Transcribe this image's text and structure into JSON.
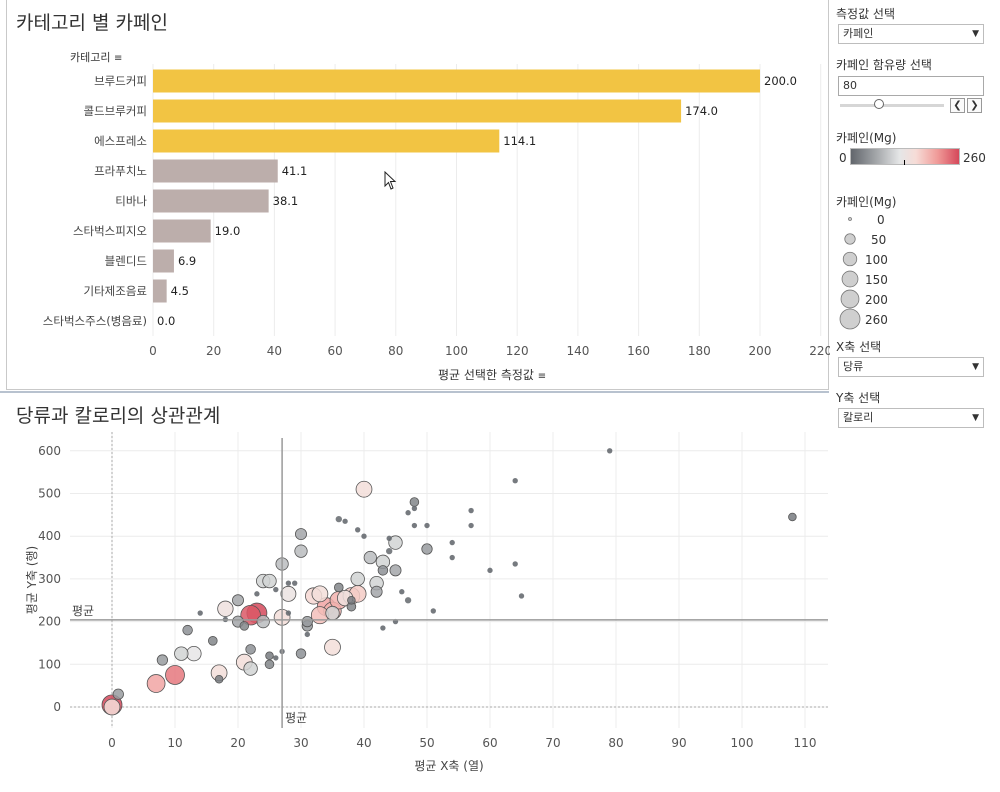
{
  "colors": {
    "bar_highlight": "#f2c443",
    "bar_normal": "#bcaeab",
    "grid": "#ececec",
    "ref_line": "#9a9a9a"
  },
  "bar_chart": {
    "title": "카테고리 별 카페인",
    "row_header": "카테고리",
    "xlabel": "평균 선택한 측정값",
    "categories": [
      "브루드커피",
      "콜드브루커피",
      "에스프레소",
      "프라푸치노",
      "티바나",
      "스타벅스피지오",
      "블렌디드",
      "기타제조음료",
      "스타벅스주스(병음료)"
    ],
    "value_labels": [
      "200.0",
      "174.0",
      "114.1",
      "41.1",
      "38.1",
      "19.0",
      "6.9",
      "4.5",
      "0.0"
    ],
    "ticks": [
      "0",
      "20",
      "40",
      "60",
      "80",
      "100",
      "120",
      "140",
      "160",
      "180",
      "200",
      "220"
    ]
  },
  "scatter_chart": {
    "title": "당류과 칼로리의 상관관계",
    "xlabel": "평균 X축 (열)",
    "ylabel": "평균 Y축 (행)",
    "avg_label_h": "평균",
    "avg_label_v": "평균",
    "x_ticks": [
      "0",
      "10",
      "20",
      "30",
      "40",
      "50",
      "60",
      "70",
      "80",
      "90",
      "100",
      "110"
    ],
    "y_ticks": [
      "0",
      "100",
      "200",
      "300",
      "400",
      "500",
      "600"
    ]
  },
  "chart_data": [
    {
      "type": "bar",
      "title": "카테고리 별 카페인",
      "categories": [
        "브루드커피",
        "콜드브루커피",
        "에스프레소",
        "프라푸치노",
        "티바나",
        "스타벅스피지오",
        "블렌디드",
        "기타제조음료",
        "스타벅스주스(병음료)"
      ],
      "values": [
        200.0,
        174.0,
        114.1,
        41.1,
        38.1,
        19.0,
        6.9,
        4.5,
        0.0
      ],
      "highlighted": [
        true,
        true,
        true,
        false,
        false,
        false,
        false,
        false,
        false
      ],
      "xlabel": "평균 선택한 측정값",
      "ylabel": "카테고리",
      "xlim": [
        0,
        225
      ],
      "grid": true
    },
    {
      "type": "scatter",
      "title": "당류과 칼로리의 상관관계",
      "xlabel": "평균 X축 (열)",
      "ylabel": "평균 Y축 (행)",
      "xlim": [
        -7,
        114
      ],
      "ylim": [
        -50,
        630
      ],
      "reference_lines": {
        "x_average": 27,
        "y_average": 204
      },
      "size_field": "카페인(Mg)",
      "color_field": "카페인(Mg)",
      "points": [
        [
          0,
          5,
          260
        ],
        [
          0,
          0,
          150
        ],
        [
          1,
          30,
          50
        ],
        [
          7,
          55,
          200
        ],
        [
          10,
          75,
          230
        ],
        [
          8,
          110,
          50
        ],
        [
          11,
          125,
          100
        ],
        [
          13,
          125,
          120
        ],
        [
          12,
          180,
          40
        ],
        [
          16,
          155,
          30
        ],
        [
          14,
          220,
          5
        ],
        [
          17,
          80,
          150
        ],
        [
          17,
          65,
          20
        ],
        [
          18,
          230,
          140
        ],
        [
          18,
          205,
          5
        ],
        [
          20,
          200,
          60
        ],
        [
          21,
          105,
          150
        ],
        [
          22,
          135,
          40
        ],
        [
          22,
          90,
          100
        ],
        [
          21,
          190,
          30
        ],
        [
          20,
          250,
          60
        ],
        [
          22,
          215,
          250
        ],
        [
          23,
          220,
          260
        ],
        [
          24,
          200,
          80
        ],
        [
          23,
          265,
          5
        ],
        [
          24,
          295,
          100
        ],
        [
          25,
          295,
          100
        ],
        [
          25,
          100,
          30
        ],
        [
          25,
          120,
          20
        ],
        [
          26,
          275,
          5
        ],
        [
          26,
          115,
          5
        ],
        [
          27,
          335,
          80
        ],
        [
          27,
          210,
          150
        ],
        [
          27,
          130,
          5
        ],
        [
          28,
          290,
          5
        ],
        [
          28,
          265,
          130
        ],
        [
          28,
          220,
          5
        ],
        [
          29,
          290,
          5
        ],
        [
          30,
          125,
          40
        ],
        [
          30,
          405,
          60
        ],
        [
          30,
          365,
          80
        ],
        [
          31,
          190,
          50
        ],
        [
          31,
          200,
          50
        ],
        [
          31,
          170,
          5
        ],
        [
          32,
          260,
          160
        ],
        [
          33,
          265,
          150
        ],
        [
          33,
          215,
          180
        ],
        [
          34,
          235,
          200
        ],
        [
          35,
          225,
          190
        ],
        [
          35,
          220,
          100
        ],
        [
          35,
          140,
          150
        ],
        [
          36,
          280,
          30
        ],
        [
          36,
          250,
          190
        ],
        [
          37,
          435,
          5
        ],
        [
          36,
          440,
          10
        ],
        [
          37,
          255,
          140
        ],
        [
          38,
          260,
          170
        ],
        [
          38,
          250,
          20
        ],
        [
          38,
          235,
          30
        ],
        [
          39,
          300,
          100
        ],
        [
          39,
          265,
          170
        ],
        [
          40,
          510,
          150
        ],
        [
          39,
          415,
          5
        ],
        [
          40,
          400,
          5
        ],
        [
          41,
          350,
          80
        ],
        [
          42,
          270,
          60
        ],
        [
          42,
          290,
          100
        ],
        [
          43,
          320,
          40
        ],
        [
          43,
          340,
          100
        ],
        [
          43,
          185,
          5
        ],
        [
          44,
          365,
          10
        ],
        [
          44,
          395,
          5
        ],
        [
          45,
          320,
          60
        ],
        [
          45,
          385,
          100
        ],
        [
          45,
          200,
          5
        ],
        [
          47,
          455,
          5
        ],
        [
          48,
          480,
          30
        ],
        [
          48,
          425,
          5
        ],
        [
          47,
          250,
          10
        ],
        [
          46,
          270,
          5
        ],
        [
          48,
          465,
          5
        ],
        [
          50,
          370,
          50
        ],
        [
          50,
          425,
          5
        ],
        [
          51,
          225,
          5
        ],
        [
          54,
          350,
          5
        ],
        [
          54,
          385,
          5
        ],
        [
          57,
          460,
          5
        ],
        [
          57,
          425,
          5
        ],
        [
          60,
          320,
          5
        ],
        [
          64,
          530,
          5
        ],
        [
          64,
          335,
          5
        ],
        [
          65,
          260,
          5
        ],
        [
          79,
          600,
          5
        ],
        [
          108,
          445,
          20
        ]
      ]
    }
  ],
  "controls": {
    "measure_label": "측정값 선택",
    "measure_value": "카페인",
    "threshold_label": "카페인 함유량 선택",
    "threshold_value": "80",
    "threshold_fraction": 0.37,
    "color_legend_title": "카페인(Mg)",
    "color_min": "0",
    "color_max": "260",
    "size_legend_title": "카페인(Mg)",
    "size_labels": [
      "0",
      "50",
      "100",
      "150",
      "200",
      "260"
    ],
    "x_axis_label": "X축 선택",
    "x_axis_value": "당류",
    "y_axis_label": "Y축 선택",
    "y_axis_value": "칼로리",
    "prev_icon": "chevron-left-icon",
    "next_icon": "chevron-right-icon"
  }
}
